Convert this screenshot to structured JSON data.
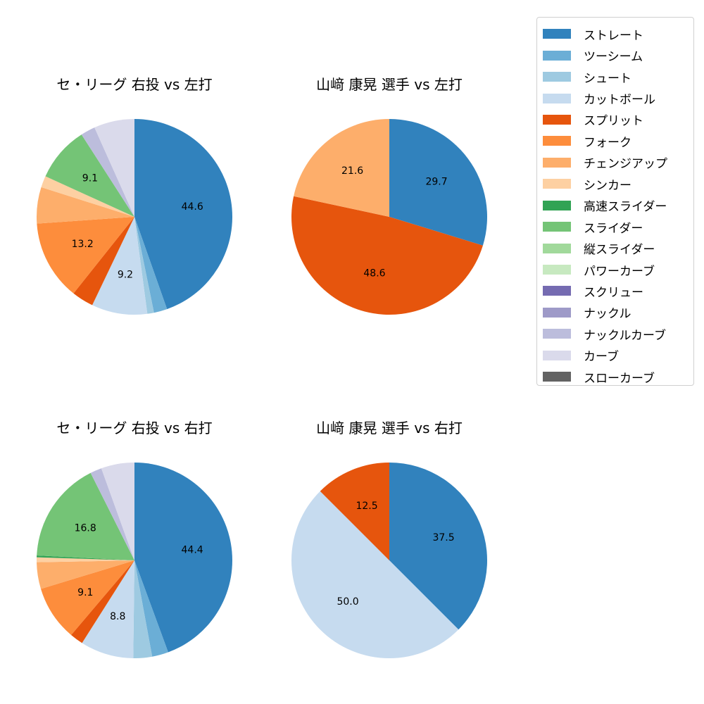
{
  "colors": {
    "ストレート": "#3182bd",
    "ツーシーム": "#6baed6",
    "シュート": "#9ecae1",
    "カットボール": "#c6dbef",
    "スプリット": "#e6550d",
    "フォーク": "#fd8d3c",
    "チェンジアップ": "#fdae6b",
    "シンカー": "#fdd0a2",
    "高速スライダー": "#31a354",
    "スライダー": "#74c476",
    "縦スライダー": "#a1d99b",
    "パワーカーブ": "#c7e9c0",
    "スクリュー": "#756bb1",
    "ナックル": "#9e9ac8",
    "ナックルカーブ": "#bcbddc",
    "カーブ": "#dadaeb",
    "スローカーブ": "#636363"
  },
  "legend": {
    "entries": [
      "ストレート",
      "ツーシーム",
      "シュート",
      "カットボール",
      "スプリット",
      "フォーク",
      "チェンジアップ",
      "シンカー",
      "高速スライダー",
      "スライダー",
      "縦スライダー",
      "パワーカーブ",
      "スクリュー",
      "ナックル",
      "ナックルカーブ",
      "カーブ",
      "スローカーブ"
    ]
  },
  "chart_data": [
    {
      "type": "pie",
      "title": "セ・リーグ 右投 vs 左打",
      "start_angle": 90,
      "direction": "clockwise",
      "label_threshold": 8,
      "slices": [
        {
          "label": "ストレート",
          "value": 44.6
        },
        {
          "label": "ツーシーム",
          "value": 2.2
        },
        {
          "label": "シュート",
          "value": 1.1
        },
        {
          "label": "カットボール",
          "value": 9.2
        },
        {
          "label": "スプリット",
          "value": 3.6
        },
        {
          "label": "フォーク",
          "value": 13.2
        },
        {
          "label": "チェンジアップ",
          "value": 6.0
        },
        {
          "label": "シンカー",
          "value": 1.9
        },
        {
          "label": "スライダー",
          "value": 9.1
        },
        {
          "label": "ナックルカーブ",
          "value": 2.4
        },
        {
          "label": "カーブ",
          "value": 6.7
        }
      ]
    },
    {
      "type": "pie",
      "title": "山﨑 康晃 選手 vs 左打",
      "start_angle": 90,
      "direction": "clockwise",
      "label_threshold": 8,
      "slices": [
        {
          "label": "ストレート",
          "value": 29.7
        },
        {
          "label": "スプリット",
          "value": 48.6
        },
        {
          "label": "チェンジアップ",
          "value": 21.6
        }
      ]
    },
    {
      "type": "pie",
      "title": "セ・リーグ 右投 vs 右打",
      "start_angle": 90,
      "direction": "clockwise",
      "label_threshold": 8,
      "slices": [
        {
          "label": "ストレート",
          "value": 44.4
        },
        {
          "label": "ツーシーム",
          "value": 2.7
        },
        {
          "label": "シュート",
          "value": 3.1
        },
        {
          "label": "カットボール",
          "value": 8.8
        },
        {
          "label": "スプリット",
          "value": 2.2
        },
        {
          "label": "フォーク",
          "value": 9.1
        },
        {
          "label": "チェンジアップ",
          "value": 4.4
        },
        {
          "label": "シンカー",
          "value": 0.8
        },
        {
          "label": "高速スライダー",
          "value": 0.3
        },
        {
          "label": "スライダー",
          "value": 16.8
        },
        {
          "label": "ナックルカーブ",
          "value": 1.9
        },
        {
          "label": "カーブ",
          "value": 5.5
        }
      ]
    },
    {
      "type": "pie",
      "title": "山﨑 康晃 選手 vs 右打",
      "start_angle": 90,
      "direction": "clockwise",
      "label_threshold": 8,
      "slices": [
        {
          "label": "ストレート",
          "value": 37.5
        },
        {
          "label": "カットボール",
          "value": 50.0
        },
        {
          "label": "スプリット",
          "value": 12.5
        }
      ]
    }
  ]
}
